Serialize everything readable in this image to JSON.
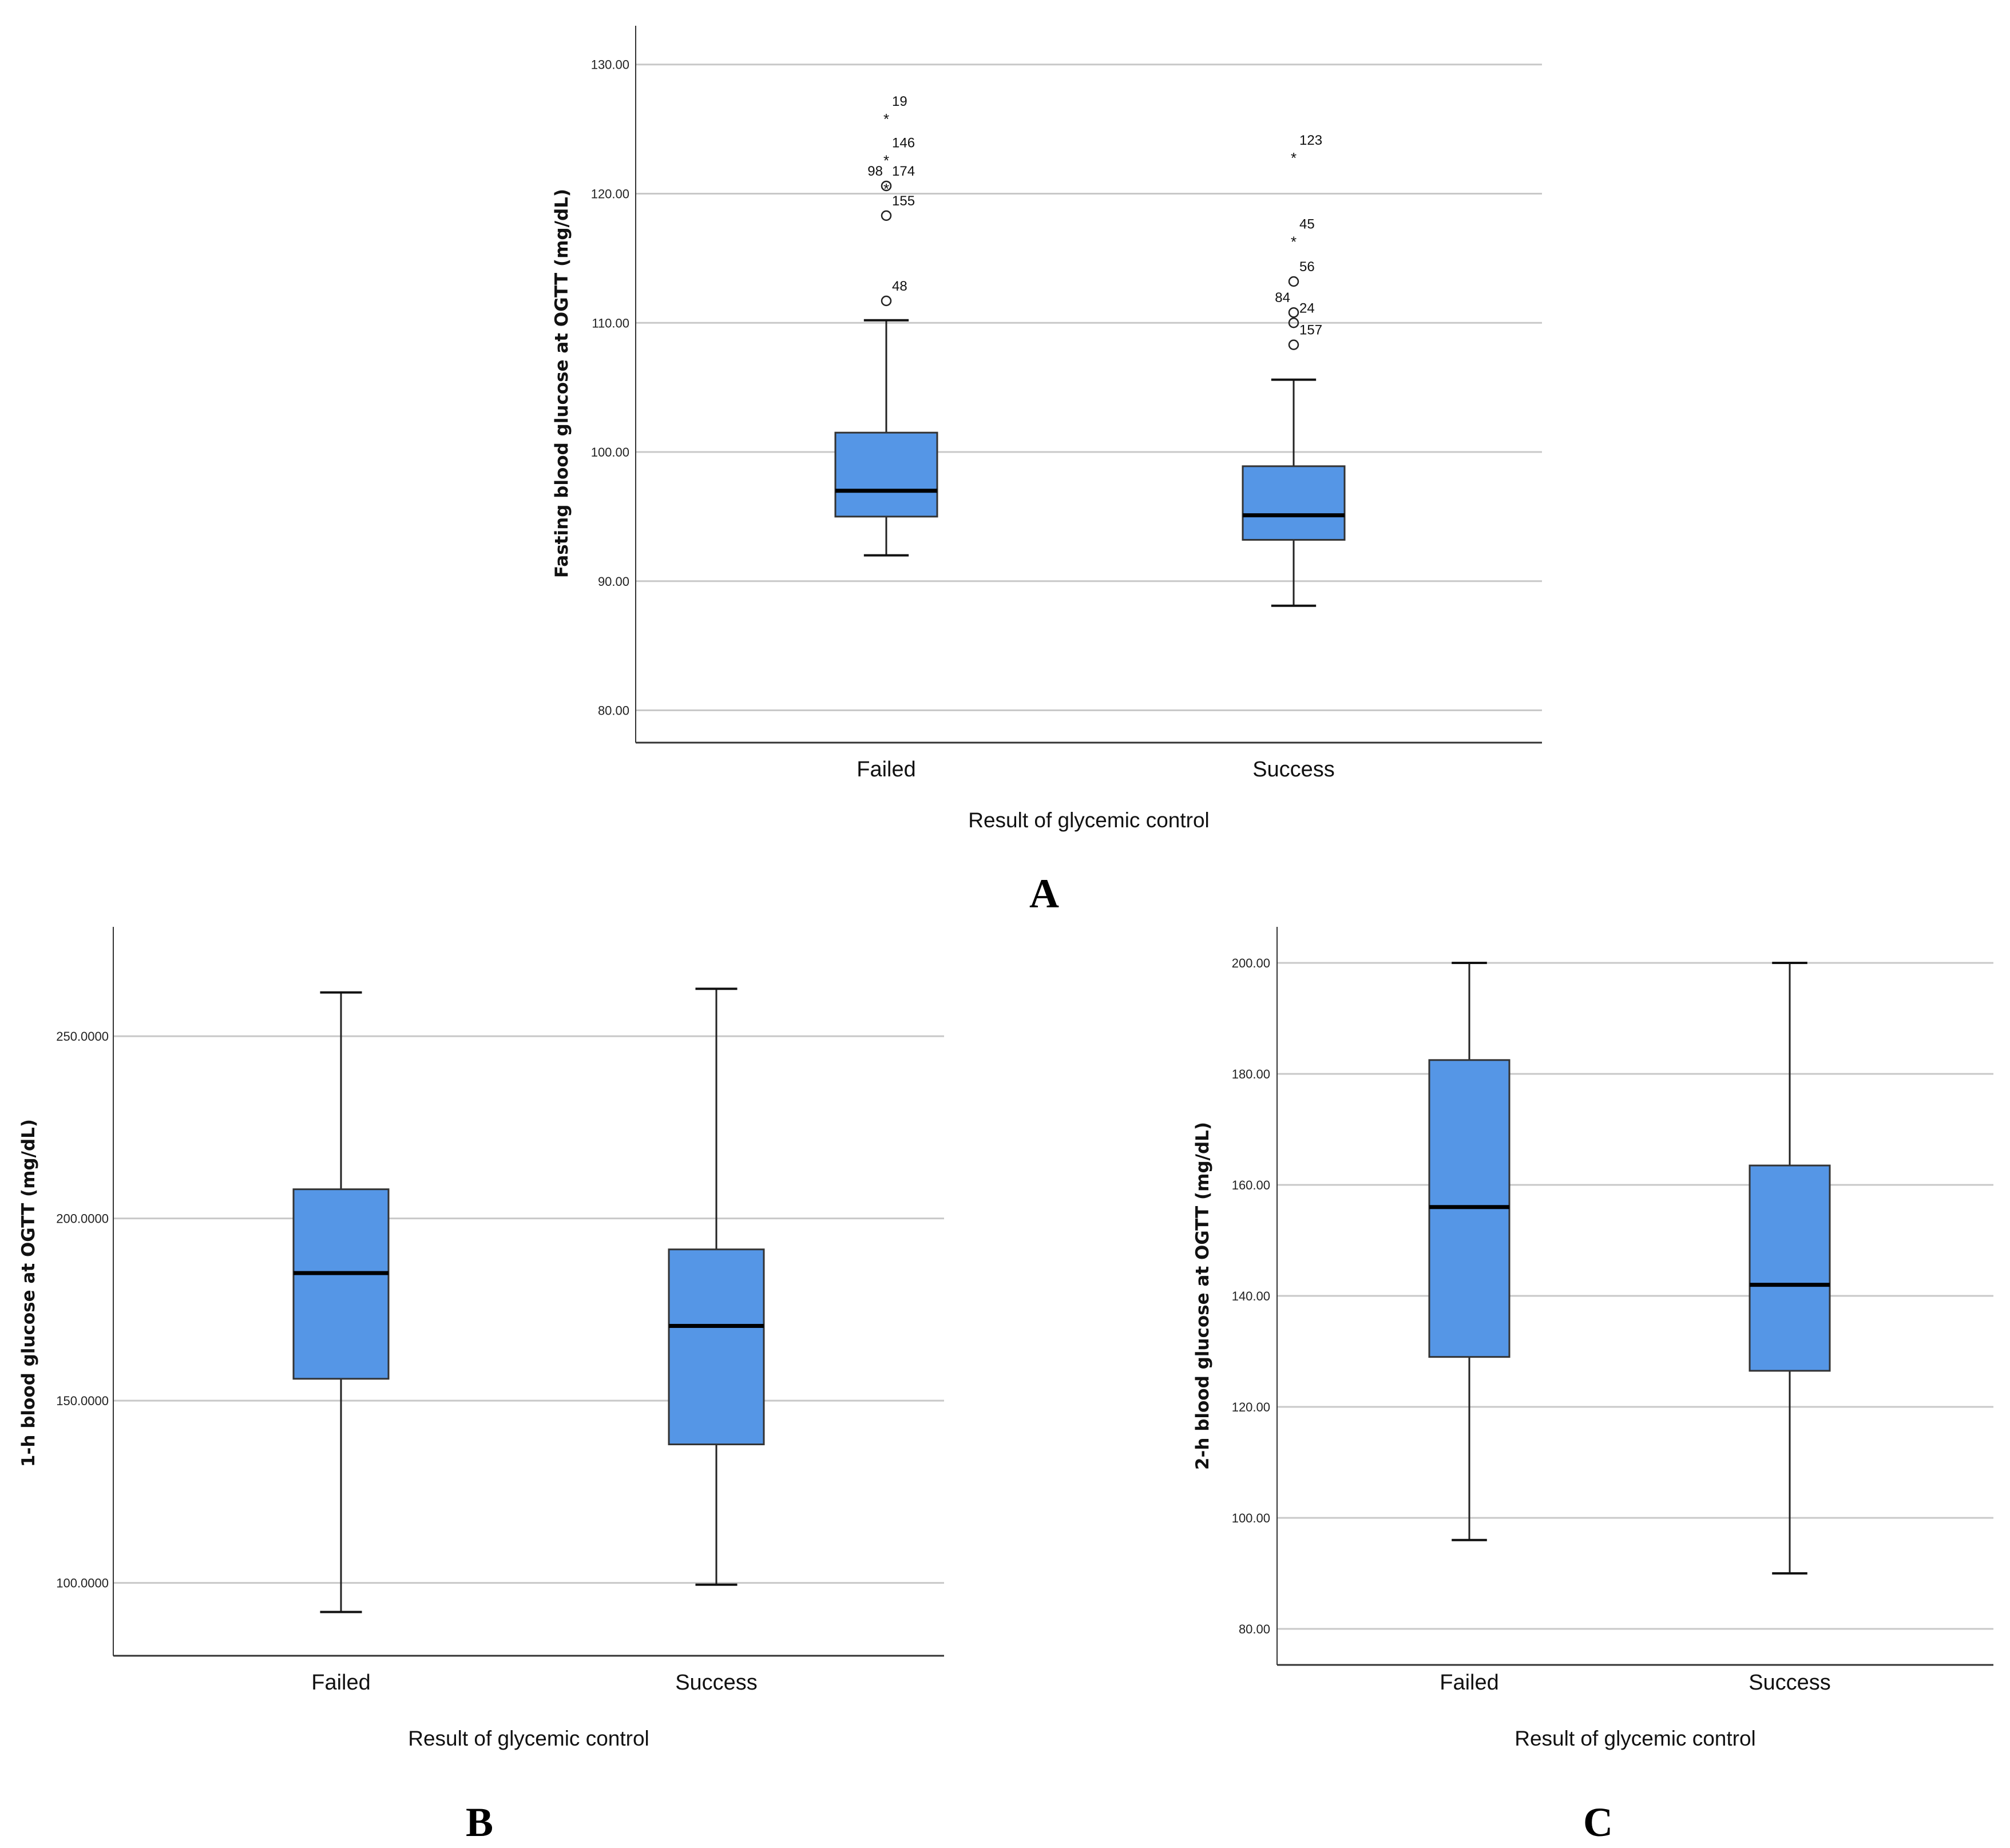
{
  "figure": {
    "box_color": "#5596E6",
    "median_color": "#000000",
    "grid_color": "#c8c8c8"
  },
  "chart_data": [
    {
      "panel_label": "A",
      "type": "box",
      "xlabel": "Result of glycemic control",
      "ylabel": "Fasting blood glucose at OGTT (mg/dL)",
      "ylim": [
        77.5,
        133
      ],
      "yticks": [
        80,
        90,
        100,
        110,
        120,
        130
      ],
      "yticklabels": [
        "80.00",
        "90.00",
        "100.00",
        "110.00",
        "120.00",
        "130.00"
      ],
      "categories": [
        "Failed",
        "Success"
      ],
      "boxes": [
        {
          "category": "Failed",
          "whisker_low": 92,
          "q1": 95,
          "median": 97,
          "q3": 101.5,
          "whisker_high": 110.2,
          "outliers": [
            {
              "label": "19",
              "value": 126,
              "marker": "*"
            },
            {
              "label": "146",
              "value": 122.8,
              "marker": "*"
            },
            {
              "label": "98",
              "value": 120.6,
              "marker": "O"
            },
            {
              "label": "174",
              "value": 120.6,
              "marker": "*"
            },
            {
              "label": "155",
              "value": 118.3,
              "marker": "O"
            },
            {
              "label": "48",
              "value": 111.7,
              "marker": "O"
            }
          ]
        },
        {
          "category": "Success",
          "whisker_low": 88.1,
          "q1": 93.2,
          "median": 95.1,
          "q3": 98.9,
          "whisker_high": 105.6,
          "outliers": [
            {
              "label": "123",
              "value": 123,
              "marker": "*"
            },
            {
              "label": "45",
              "value": 116.5,
              "marker": "*"
            },
            {
              "label": "56",
              "value": 113.2,
              "marker": "O"
            },
            {
              "label": "84",
              "value": 110.8,
              "marker": "O"
            },
            {
              "label": "24",
              "value": 110.0,
              "marker": "O"
            },
            {
              "label": "157",
              "value": 108.3,
              "marker": "O"
            }
          ]
        }
      ]
    },
    {
      "panel_label": "B",
      "type": "box",
      "xlabel": "Result of glycemic control",
      "ylabel": "1-h blood glucose at OGTT (mg/dL)",
      "ylim": [
        80,
        280
      ],
      "yticks": [
        100,
        150,
        200,
        250
      ],
      "yticklabels": [
        "100.0000",
        "150.0000",
        "200.0000",
        "250.0000"
      ],
      "categories": [
        "Failed",
        "Success"
      ],
      "boxes": [
        {
          "category": "Failed",
          "whisker_low": 92,
          "q1": 156,
          "median": 185,
          "q3": 208,
          "whisker_high": 262,
          "outliers": []
        },
        {
          "category": "Success",
          "whisker_low": 99.5,
          "q1": 138,
          "median": 170.5,
          "q3": 191.5,
          "whisker_high": 263,
          "outliers": []
        }
      ]
    },
    {
      "panel_label": "C",
      "type": "box",
      "xlabel": "Result of glycemic control",
      "ylabel": "2-h blood glucose at OGTT (mg/dL)",
      "ylim": [
        73.5,
        206.5
      ],
      "yticks": [
        80,
        100,
        120,
        140,
        160,
        180,
        200
      ],
      "yticklabels": [
        "80.00",
        "100.00",
        "120.00",
        "140.00",
        "160.00",
        "180.00",
        "200.00"
      ],
      "categories": [
        "Failed",
        "Success"
      ],
      "boxes": [
        {
          "category": "Failed",
          "whisker_low": 96,
          "q1": 129,
          "median": 156,
          "q3": 182.5,
          "whisker_high": 200,
          "outliers": []
        },
        {
          "category": "Success",
          "whisker_low": 90,
          "q1": 126.5,
          "median": 142,
          "q3": 163.5,
          "whisker_high": 200,
          "outliers": []
        }
      ]
    }
  ]
}
